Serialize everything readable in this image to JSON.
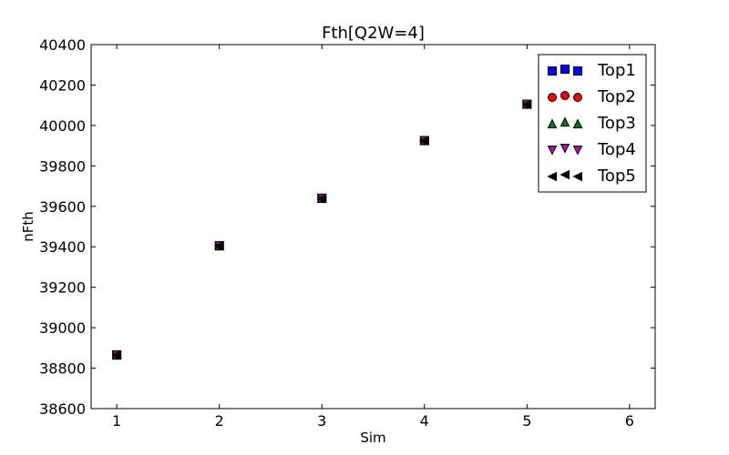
{
  "chart_data": {
    "type": "scatter",
    "title": "Fth[Q2W=4]",
    "xlabel": "Sim",
    "ylabel": "nFth",
    "xlim": [
      0.75,
      6.25
    ],
    "ylim": [
      38600,
      40400
    ],
    "xticks": [
      1,
      2,
      3,
      4,
      5,
      6
    ],
    "yticks": [
      38600,
      38800,
      39000,
      39200,
      39400,
      39600,
      39800,
      40000,
      40200,
      40400
    ],
    "grid": false,
    "legend_position": "top-right",
    "x": [
      1,
      2,
      3,
      4,
      5
    ],
    "series": [
      {
        "name": "Top1",
        "marker": "square",
        "color": "#0000ff",
        "values": [
          38865,
          39405,
          39640,
          39925,
          40105
        ]
      },
      {
        "name": "Top2",
        "marker": "circle",
        "color": "#ff0000",
        "values": [
          38865,
          39405,
          39640,
          39925,
          40105
        ]
      },
      {
        "name": "Top3",
        "marker": "triangle-up",
        "color": "#008000",
        "values": [
          38865,
          39405,
          39640,
          39925,
          40105
        ]
      },
      {
        "name": "Top4",
        "marker": "triangle-down",
        "color": "#bf00bf",
        "values": [
          38865,
          39405,
          39640,
          39925,
          40105
        ]
      },
      {
        "name": "Top5",
        "marker": "triangle-left",
        "color": "#000000",
        "values": [
          38865,
          39405,
          39640,
          39925,
          40105
        ]
      }
    ]
  }
}
